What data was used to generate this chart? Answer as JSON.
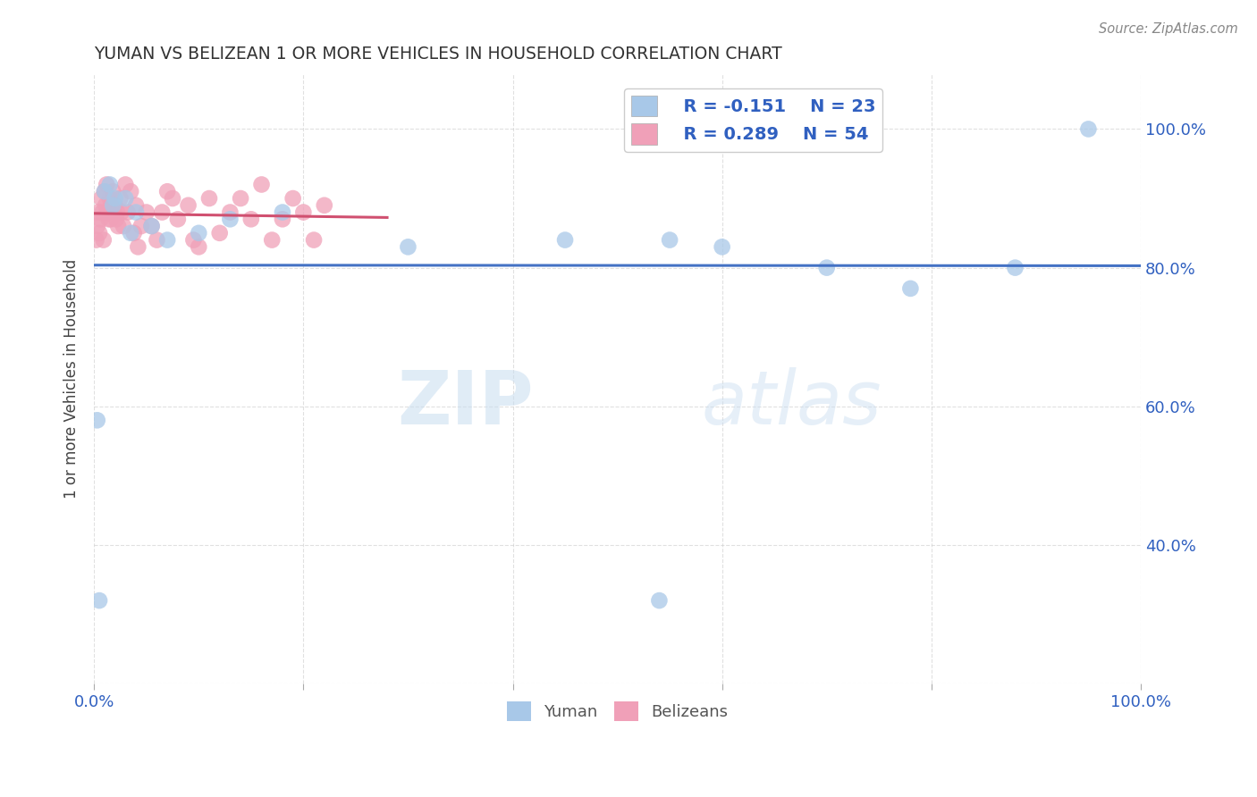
{
  "title": "YUMAN VS BELIZEAN 1 OR MORE VEHICLES IN HOUSEHOLD CORRELATION CHART",
  "source_text": "Source: ZipAtlas.com",
  "ylabel": "1 or more Vehicles in Household",
  "xlim": [
    0,
    100
  ],
  "ylim": [
    20,
    108
  ],
  "watermark_zip": "ZIP",
  "watermark_atlas": "atlas",
  "blue_R": "R = -0.151",
  "blue_N": "N = 23",
  "pink_R": "R = 0.289",
  "pink_N": "N = 54",
  "blue_color": "#a8c8e8",
  "pink_color": "#f0a0b8",
  "blue_line_color": "#4472c4",
  "pink_line_color": "#d05070",
  "legend_text_color": "#3060c0",
  "yuman_x": [
    0.3,
    1.0,
    1.5,
    3.0,
    4.0,
    5.5,
    7.0,
    10.0,
    13.0,
    18.0,
    30.0,
    45.0,
    55.0,
    60.0,
    70.0,
    78.0,
    88.0,
    95.0,
    0.5,
    1.8,
    2.0,
    3.5,
    54.0
  ],
  "yuman_y": [
    58,
    91,
    92,
    90,
    88,
    86,
    84,
    85,
    87,
    88,
    83,
    84,
    84,
    83,
    80,
    77,
    80,
    100,
    32,
    89,
    90,
    85,
    32
  ],
  "belizean_x": [
    0.2,
    0.3,
    0.4,
    0.5,
    0.6,
    0.7,
    0.8,
    0.9,
    1.0,
    1.1,
    1.2,
    1.3,
    1.5,
    1.6,
    1.8,
    2.0,
    2.2,
    2.5,
    2.8,
    3.0,
    3.2,
    3.5,
    4.0,
    4.5,
    5.0,
    6.0,
    7.0,
    8.0,
    9.0,
    10.0,
    11.0,
    12.0,
    13.0,
    14.0,
    15.0,
    16.0,
    17.0,
    18.0,
    19.0,
    20.0,
    21.0,
    22.0,
    1.4,
    1.7,
    1.9,
    2.1,
    2.3,
    2.6,
    3.8,
    4.2,
    5.5,
    6.5,
    7.5,
    9.5
  ],
  "belizean_y": [
    84,
    86,
    88,
    85,
    87,
    90,
    88,
    84,
    91,
    89,
    92,
    88,
    90,
    87,
    91,
    89,
    88,
    90,
    86,
    92,
    88,
    91,
    89,
    86,
    88,
    84,
    91,
    87,
    89,
    83,
    90,
    85,
    88,
    90,
    87,
    92,
    84,
    87,
    90,
    88,
    84,
    89,
    87,
    89,
    88,
    87,
    86,
    88,
    85,
    83,
    86,
    88,
    90,
    84
  ],
  "grid_color": "#cccccc",
  "tick_color": "#3060c0",
  "dot_size": 180
}
